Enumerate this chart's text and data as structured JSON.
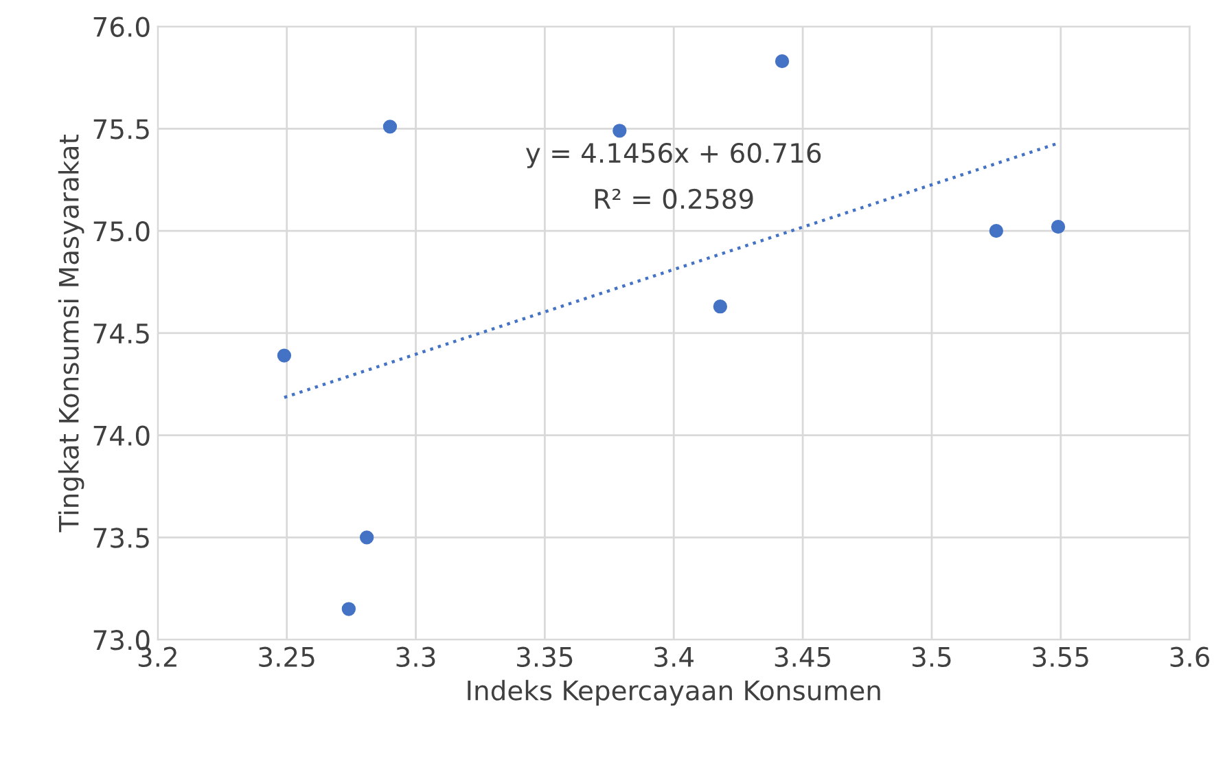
{
  "chart_data": {
    "type": "scatter",
    "xlabel": "Indeks Kepercayaan Konsumen",
    "ylabel": "Tingkat Konsumsi Masyarakat",
    "series": [
      {
        "color": "#4472c4",
        "marker": "circle",
        "x": [
          3.249,
          3.274,
          3.281,
          3.29,
          3.379,
          3.418,
          3.442,
          3.525,
          3.549
        ],
        "values": [
          74.39,
          73.15,
          73.5,
          75.51,
          75.49,
          74.63,
          75.83,
          75.0,
          75.02
        ]
      },
      {
        "type": "line",
        "color": "#4472c4",
        "line_style": "dotted",
        "marker": "none",
        "x": [
          3.249,
          3.549
        ],
        "values": [
          74.185,
          75.429
        ]
      }
    ],
    "annotations": [
      "y = 4.1456x + 60.716",
      "R² = 0.2589"
    ],
    "xlim": [
      3.2,
      3.6
    ],
    "xticks": [
      3.2,
      3.25,
      3.3,
      3.35,
      3.4,
      3.45,
      3.5,
      3.55,
      3.6
    ],
    "ylim": [
      73.0,
      76.0
    ],
    "yticks": [
      {
        "value": 73.0,
        "label": "73.0"
      },
      {
        "value": 73.5,
        "label": "73.5"
      },
      {
        "value": 74.0,
        "label": "74.0"
      },
      {
        "value": 74.5,
        "label": "74.5"
      },
      {
        "value": 75.0,
        "label": "75.0"
      },
      {
        "value": 75.5,
        "label": "75.5"
      },
      {
        "value": 76.0,
        "label": "76.0"
      }
    ],
    "grid": true,
    "legend": false
  }
}
